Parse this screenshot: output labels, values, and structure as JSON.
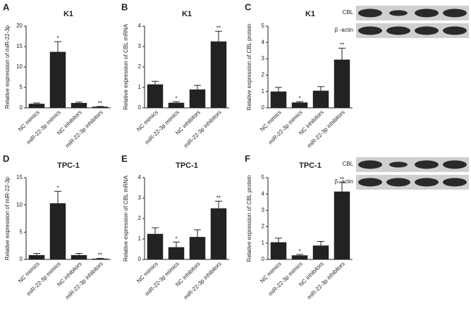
{
  "chart_data": [
    {
      "type": "bar",
      "label": "A",
      "title": "K1",
      "ylabel": "Relative expression of miR-22-3p",
      "categories": [
        "NC mimics",
        "miR-22-3p mimics",
        "NC inhibitors",
        "miR-22-3p inhibitors"
      ],
      "values": [
        1.0,
        13.7,
        1.2,
        0.3
      ],
      "errors": [
        0.2,
        2.5,
        0.2,
        0.05
      ],
      "annotations": [
        null,
        "*",
        null,
        "**"
      ],
      "color": "#222222",
      "ylim": [
        0,
        20
      ],
      "yticks": [
        0,
        5,
        10,
        15,
        20
      ]
    },
    {
      "type": "bar",
      "label": "B",
      "title": "K1",
      "ylabel": "Relative expression of CBL mRNA",
      "categories": [
        "NC mimics",
        "miR-22-3p mimics",
        "NC inhibitors",
        "miR-22-3p inhibitors"
      ],
      "values": [
        1.15,
        0.25,
        0.9,
        3.25
      ],
      "errors": [
        0.15,
        0.05,
        0.2,
        0.5
      ],
      "annotations": [
        null,
        "*",
        null,
        "**"
      ],
      "color": "#222222",
      "ylim": [
        0,
        4
      ],
      "yticks": [
        0,
        1,
        2,
        3,
        4
      ]
    },
    {
      "type": "bar",
      "label": "C",
      "title": "K1",
      "ylabel": "Relative expression of CBL protein",
      "categories": [
        "NC mimics",
        "miR-22-3p mimics",
        "NC inhibitors",
        "miR-22-3p inhibitors"
      ],
      "values": [
        1.0,
        0.33,
        1.05,
        2.95
      ],
      "errors": [
        0.25,
        0.05,
        0.25,
        0.7
      ],
      "annotations": [
        null,
        "*",
        null,
        "**"
      ],
      "color": "#222222",
      "ylim": [
        0,
        5
      ],
      "yticks": [
        0,
        1,
        2,
        3,
        4,
        5
      ],
      "blot_labels": [
        "CBL",
        "β -actin"
      ]
    },
    {
      "type": "bar",
      "label": "D",
      "title": "TPC-1",
      "ylabel": "Relative expression of miR-22-3p",
      "categories": [
        "NC mimics",
        "miR-22-3p mimics",
        "NC inhibitors",
        "miR-22-3p inhibitors"
      ],
      "values": [
        0.8,
        10.3,
        0.8,
        0.15
      ],
      "errors": [
        0.3,
        2.2,
        0.3,
        0.05
      ],
      "annotations": [
        null,
        "*",
        null,
        "**"
      ],
      "color": "#222222",
      "ylim": [
        0,
        15
      ],
      "yticks": [
        0,
        5,
        10,
        15
      ]
    },
    {
      "type": "bar",
      "label": "E",
      "title": "TPC-1",
      "ylabel": "Relative expression of CBL mRNA",
      "categories": [
        "NC mimics",
        "miR-22-3p mimics",
        "NC inhibitors",
        "miR-22-3p inhibitors"
      ],
      "values": [
        1.25,
        0.6,
        1.1,
        2.5
      ],
      "errors": [
        0.3,
        0.25,
        0.35,
        0.35
      ],
      "annotations": [
        null,
        "*",
        null,
        "**"
      ],
      "color": "#222222",
      "ylim": [
        0,
        4
      ],
      "yticks": [
        0,
        1,
        2,
        3,
        4
      ]
    },
    {
      "type": "bar",
      "label": "F",
      "title": "TPC-1",
      "ylabel": "Relative expression of CBL protein",
      "categories": [
        "NC mimics",
        "miR-22-3p mimics",
        "NC inhibitors",
        "miR-22-3p inhibitors"
      ],
      "values": [
        1.05,
        0.25,
        0.85,
        4.15
      ],
      "errors": [
        0.25,
        0.05,
        0.25,
        0.55
      ],
      "annotations": [
        null,
        "*",
        null,
        "**"
      ],
      "color": "#222222",
      "ylim": [
        0,
        5
      ],
      "yticks": [
        0,
        1,
        2,
        3,
        4,
        5
      ],
      "blot_labels": [
        "CBL",
        "β -actin"
      ]
    }
  ]
}
